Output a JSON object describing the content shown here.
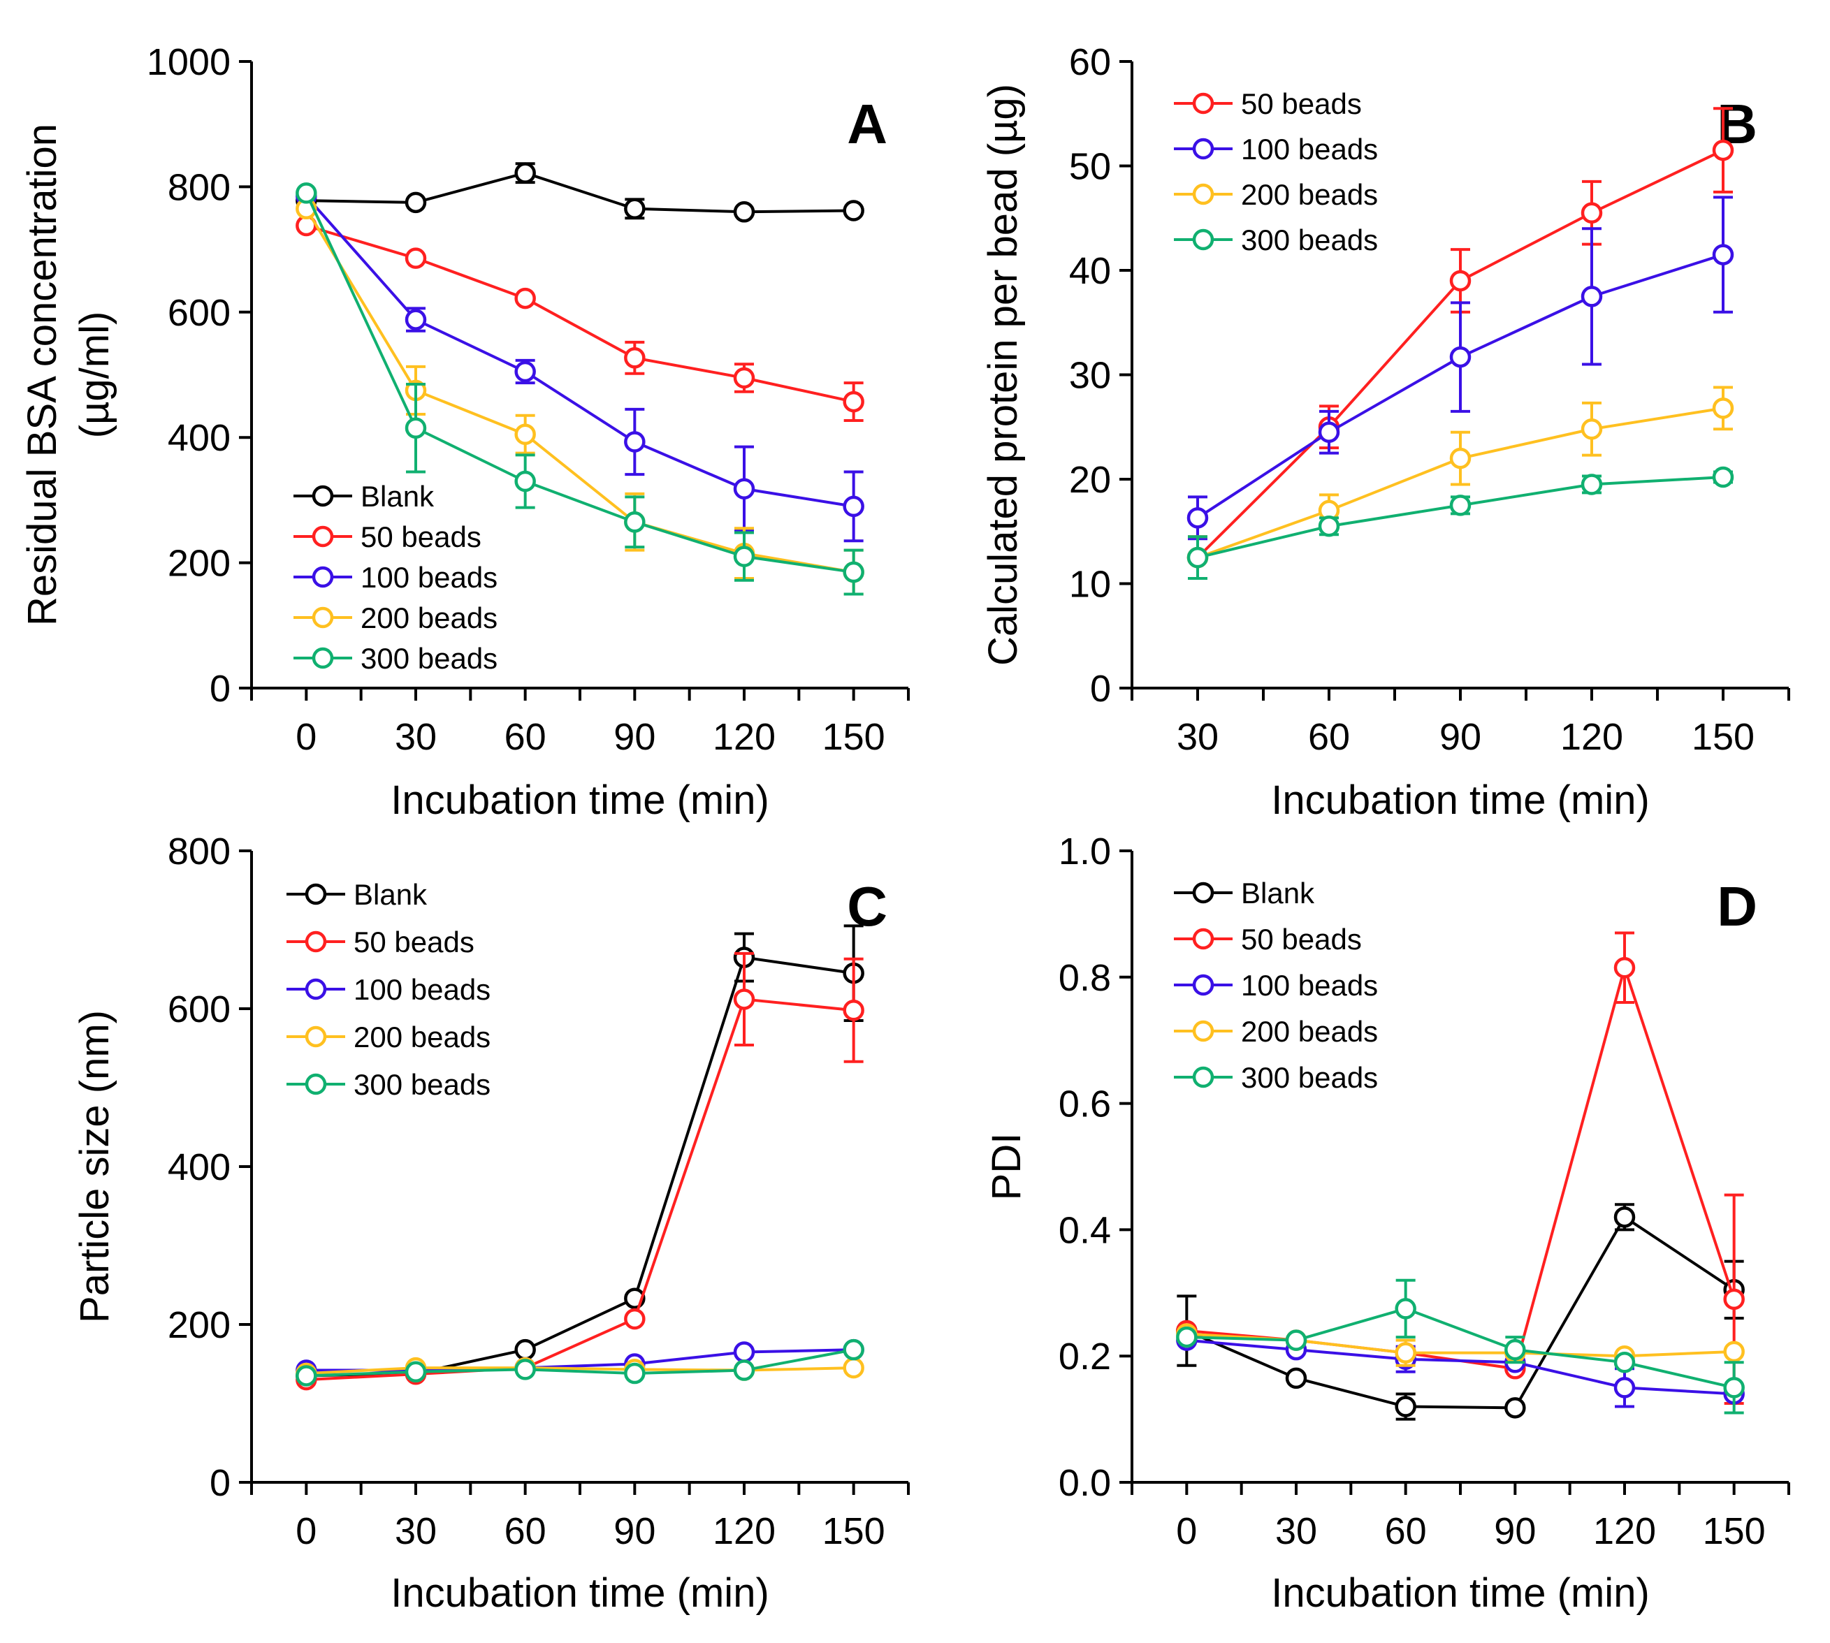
{
  "chart_data": [
    {
      "id": "A",
      "type": "line",
      "panel_label": "A",
      "xlabel": "Incubation time (min)",
      "ylabel": [
        "Residual BSA concentration",
        "(µg/ml)"
      ],
      "x": [
        0,
        30,
        60,
        90,
        120,
        150
      ],
      "xlim": [
        -15,
        165
      ],
      "ylim": [
        0,
        1000
      ],
      "yticks": [
        0,
        200,
        400,
        600,
        800,
        1000
      ],
      "ytick_labels": [
        "0",
        "200",
        "400",
        "600",
        "800",
        "1000"
      ],
      "xticks": [
        0,
        30,
        60,
        90,
        120,
        150
      ],
      "xtick_labels": [
        "0",
        "30",
        "60",
        "90",
        "120",
        "150"
      ],
      "legend": {
        "position": "bottom-left"
      },
      "series": [
        {
          "name": "Blank",
          "color": "#000000",
          "values": [
            778,
            775,
            822,
            765,
            760,
            762
          ],
          "errors": [
            0,
            0,
            15,
            15,
            0,
            0
          ]
        },
        {
          "name": "50 beads",
          "color": "#ff2020",
          "values": [
            738,
            686,
            622,
            527,
            495,
            457
          ],
          "errors": [
            0,
            0,
            0,
            25,
            22,
            30
          ]
        },
        {
          "name": "100 beads",
          "color": "#3a10e6",
          "values": [
            785,
            588,
            505,
            393,
            318,
            290
          ],
          "errors": [
            0,
            18,
            18,
            52,
            67,
            55
          ]
        },
        {
          "name": "200 beads",
          "color": "#ffc020",
          "values": [
            765,
            475,
            405,
            265,
            215,
            185
          ],
          "errors": [
            0,
            38,
            30,
            45,
            40,
            35
          ]
        },
        {
          "name": "300 beads",
          "color": "#10b070",
          "values": [
            790,
            415,
            330,
            265,
            210,
            185
          ],
          "errors": [
            0,
            70,
            42,
            40,
            38,
            35
          ]
        }
      ]
    },
    {
      "id": "B",
      "type": "line",
      "panel_label": "B",
      "xlabel": "Incubation time (min)",
      "ylabel": [
        "Calculated protein per bead (µg)"
      ],
      "x": [
        30,
        60,
        90,
        120,
        150
      ],
      "xlim": [
        15,
        165
      ],
      "ylim": [
        0,
        60
      ],
      "yticks": [
        0,
        10,
        20,
        30,
        40,
        50,
        60
      ],
      "ytick_labels": [
        "0",
        "10",
        "20",
        "30",
        "40",
        "50",
        "60"
      ],
      "xticks": [
        30,
        60,
        90,
        120,
        150
      ],
      "xtick_labels": [
        "30",
        "60",
        "90",
        "120",
        "150"
      ],
      "legend": {
        "position": "top-left"
      },
      "series": [
        {
          "name": "50 beads",
          "color": "#ff2020",
          "values": [
            12.5,
            25,
            39,
            45.5,
            51.5
          ],
          "errors": [
            2,
            2,
            3,
            3,
            4
          ]
        },
        {
          "name": "100 beads",
          "color": "#3a10e6",
          "values": [
            16.3,
            24.5,
            31.7,
            37.5,
            41.5
          ],
          "errors": [
            2,
            2,
            5.2,
            6.5,
            5.5
          ]
        },
        {
          "name": "200 beads",
          "color": "#ffc020",
          "values": [
            12.5,
            17,
            22,
            24.8,
            26.8
          ],
          "errors": [
            2,
            1.5,
            2.5,
            2.5,
            2
          ]
        },
        {
          "name": "300 beads",
          "color": "#10b070",
          "values": [
            12.5,
            15.5,
            17.5,
            19.5,
            20.2
          ],
          "errors": [
            2,
            0.8,
            0.8,
            0.8,
            0.5
          ]
        }
      ]
    },
    {
      "id": "C",
      "type": "line",
      "panel_label": "C",
      "xlabel": "Incubation time (min)",
      "ylabel": [
        "Particle size (nm)"
      ],
      "x": [
        0,
        30,
        60,
        90,
        120,
        150
      ],
      "xlim": [
        -15,
        165
      ],
      "ylim": [
        0,
        800
      ],
      "yticks": [
        0,
        200,
        400,
        600,
        800
      ],
      "ytick_labels": [
        "0",
        "200",
        "400",
        "600",
        "800"
      ],
      "xticks": [
        0,
        30,
        60,
        90,
        120,
        150
      ],
      "xtick_labels": [
        "0",
        "30",
        "60",
        "90",
        "120",
        "150"
      ],
      "legend": {
        "position": "top-left"
      },
      "series": [
        {
          "name": "Blank",
          "color": "#000000",
          "values": [
            135,
            138,
            168,
            233,
            665,
            645
          ],
          "errors": [
            0,
            0,
            0,
            0,
            30,
            60
          ]
        },
        {
          "name": "50 beads",
          "color": "#ff2020",
          "values": [
            130,
            137,
            145,
            207,
            612,
            598
          ],
          "errors": [
            0,
            0,
            0,
            0,
            58,
            65
          ]
        },
        {
          "name": "100 beads",
          "color": "#3a10e6",
          "values": [
            142,
            142,
            145,
            150,
            165,
            168
          ],
          "errors": [
            0,
            0,
            0,
            0,
            0,
            0
          ]
        },
        {
          "name": "200 beads",
          "color": "#ffc020",
          "values": [
            138,
            145,
            145,
            143,
            142,
            145
          ],
          "errors": [
            0,
            0,
            0,
            0,
            0,
            0
          ]
        },
        {
          "name": "300 beads",
          "color": "#10b070",
          "values": [
            135,
            140,
            143,
            138,
            142,
            168
          ],
          "errors": [
            0,
            0,
            0,
            0,
            0,
            0
          ]
        }
      ]
    },
    {
      "id": "D",
      "type": "line",
      "panel_label": "D",
      "xlabel": "Incubation time (min)",
      "ylabel": [
        "PDI"
      ],
      "x": [
        0,
        30,
        60,
        90,
        120,
        150
      ],
      "xlim": [
        -15,
        165
      ],
      "ylim": [
        0,
        1.0
      ],
      "yticks": [
        0,
        0.2,
        0.4,
        0.6,
        0.8,
        1.0
      ],
      "ytick_labels": [
        "0.0",
        "0.2",
        "0.4",
        "0.6",
        "0.8",
        "1.0"
      ],
      "xticks": [
        0,
        30,
        60,
        90,
        120,
        150
      ],
      "xtick_labels": [
        "0",
        "30",
        "60",
        "90",
        "120",
        "150"
      ],
      "legend": {
        "position": "top-left"
      },
      "series": [
        {
          "name": "Blank",
          "color": "#000000",
          "values": [
            0.24,
            0.165,
            0.12,
            0.118,
            0.42,
            0.305
          ],
          "errors": [
            0.055,
            0,
            0.02,
            0,
            0.02,
            0.045
          ]
        },
        {
          "name": "50 beads",
          "color": "#ff2020",
          "values": [
            0.24,
            0.225,
            0.205,
            0.18,
            0.815,
            0.29
          ],
          "errors": [
            0,
            0,
            0,
            0,
            0.055,
            0.165
          ]
        },
        {
          "name": "100 beads",
          "color": "#3a10e6",
          "values": [
            0.225,
            0.21,
            0.195,
            0.19,
            0.15,
            0.14
          ],
          "errors": [
            0,
            0,
            0.02,
            0,
            0.03,
            0
          ]
        },
        {
          "name": "200 beads",
          "color": "#ffc020",
          "values": [
            0.235,
            0.225,
            0.205,
            0.205,
            0.2,
            0.207
          ],
          "errors": [
            0,
            0,
            0.02,
            0,
            0,
            0
          ]
        },
        {
          "name": "300 beads",
          "color": "#10b070",
          "values": [
            0.23,
            0.225,
            0.275,
            0.21,
            0.19,
            0.15
          ],
          "errors": [
            0,
            0,
            0.045,
            0.02,
            0,
            0.04
          ]
        }
      ]
    }
  ]
}
